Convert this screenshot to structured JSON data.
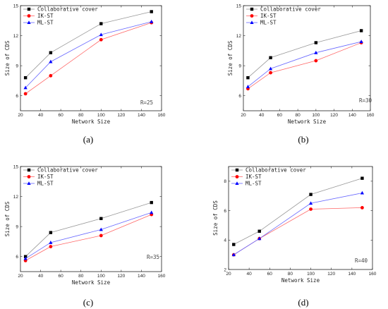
{
  "series_styles": [
    {
      "color": "#000000",
      "line": "#999999",
      "marker": "square"
    },
    {
      "color": "#ff0000",
      "line": "#ff6666",
      "marker": "circle"
    },
    {
      "color": "#0000ff",
      "line": "#6666ff",
      "marker": "triangle"
    }
  ],
  "chart_data": [
    {
      "type": "line",
      "caption": "(a)",
      "annotation": "R=25",
      "xlabel": "Network Size",
      "ylabel": "Size of CDS",
      "xlim": [
        20,
        160
      ],
      "ylim": [
        4.5,
        15
      ],
      "xticks": [
        20,
        40,
        60,
        80,
        100,
        120,
        140,
        160
      ],
      "yticks": [
        6,
        9,
        12,
        15
      ],
      "x": [
        25,
        50,
        100,
        150
      ],
      "series": [
        {
          "name": "Collaborative cover",
          "values": [
            7.8,
            10.3,
            13.2,
            14.4
          ]
        },
        {
          "name": "IK-ST",
          "values": [
            6.2,
            8.0,
            11.6,
            13.3
          ]
        },
        {
          "name": "ML-ST",
          "values": [
            6.8,
            9.4,
            12.1,
            13.4
          ]
        }
      ]
    },
    {
      "type": "line",
      "caption": "(b)",
      "annotation": "R=30",
      "xlabel": "Network Size",
      "ylabel": "Size of CDS",
      "xlim": [
        20,
        160
      ],
      "ylim": [
        4.5,
        15
      ],
      "xticks": [
        20,
        40,
        60,
        80,
        100,
        120,
        140,
        160
      ],
      "yticks": [
        6,
        9,
        12,
        15
      ],
      "x": [
        25,
        50,
        100,
        150
      ],
      "series": [
        {
          "name": "Collaborative cover",
          "values": [
            7.8,
            9.8,
            11.3,
            12.5
          ]
        },
        {
          "name": "IK-ST",
          "values": [
            6.7,
            8.3,
            9.5,
            11.3
          ]
        },
        {
          "name": "ML-ST",
          "values": [
            6.9,
            8.7,
            10.3,
            11.4
          ]
        }
      ]
    },
    {
      "type": "line",
      "caption": "(c)",
      "annotation": "R=35",
      "xlabel": "Network Size",
      "ylabel": "Size of CDS",
      "xlim": [
        20,
        160
      ],
      "ylim": [
        4.5,
        15
      ],
      "xticks": [
        20,
        40,
        60,
        80,
        100,
        120,
        140,
        160
      ],
      "yticks": [
        6,
        9,
        12,
        15
      ],
      "x": [
        25,
        50,
        100,
        150
      ],
      "series": [
        {
          "name": "Collaborative cover",
          "values": [
            6.0,
            8.4,
            9.8,
            11.4
          ]
        },
        {
          "name": "IK-ST",
          "values": [
            5.6,
            7.0,
            8.1,
            10.2
          ]
        },
        {
          "name": "ML-ST",
          "values": [
            5.8,
            7.4,
            8.7,
            10.4
          ]
        }
      ]
    },
    {
      "type": "line",
      "caption": "(d)",
      "annotation": "R=40",
      "xlabel": "Network Size",
      "ylabel": "Size of CDS",
      "xlim": [
        20,
        160
      ],
      "ylim": [
        2,
        9
      ],
      "xticks": [
        20,
        40,
        60,
        80,
        100,
        120,
        140,
        160
      ],
      "yticks": [
        2,
        4,
        6,
        8
      ],
      "x": [
        25,
        50,
        100,
        150
      ],
      "series": [
        {
          "name": "Collaborative cover",
          "values": [
            3.7,
            4.6,
            7.1,
            8.2
          ]
        },
        {
          "name": "IK-ST",
          "values": [
            3.0,
            4.1,
            6.1,
            6.2
          ]
        },
        {
          "name": "ML-ST",
          "values": [
            3.0,
            4.1,
            6.5,
            7.2
          ]
        }
      ]
    }
  ]
}
